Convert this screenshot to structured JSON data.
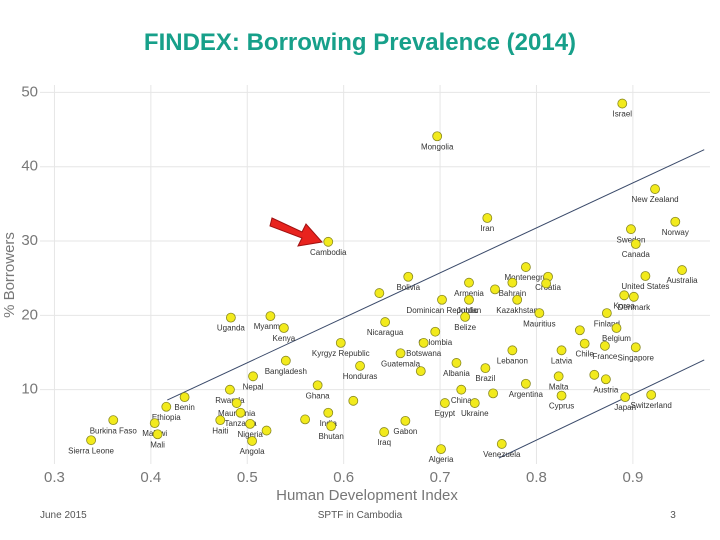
{
  "chart_data": {
    "type": "scatter",
    "title": "FINDEX: Borrowing Prevalence (2014)",
    "x_label": "Human Development Index",
    "y_label": "% Borrowers",
    "xlim": [
      0.285,
      0.98
    ],
    "ylim": [
      0,
      51
    ],
    "xticks": [
      0.3,
      0.4,
      0.5,
      0.6,
      0.7,
      0.8,
      0.9
    ],
    "yticks": [
      10,
      20,
      30,
      40,
      50
    ],
    "grid": true,
    "color": "#f2ea1c",
    "labels": [
      "Israel",
      "Mongolia",
      "New Zealand",
      "Iran",
      "Norway",
      "Sweden",
      "Cambodia",
      "Canada",
      "Montenegro",
      "Australia",
      "Bolivia",
      "Croatia",
      "United States",
      "Armenia",
      "Bahrain",
      "Korea",
      "Denmark",
      "Myanmar",
      "Uganda",
      "Kenya",
      "Dominican Republic",
      "Jordan",
      "Kazakhstan",
      "Finland",
      "Nicaragua",
      "Belize",
      "Mauritius",
      "Colombia",
      "Belgium",
      "Kyrgyz Republic",
      "Botswana",
      "Lebanon",
      "Chile",
      "France",
      "Singapore",
      "Latvia",
      "Bangladesh",
      "Guatemala",
      "Nepal",
      "Honduras",
      "Albania",
      "Brazil",
      "Malta",
      "Austria",
      "Rwanda",
      "Benin",
      "China",
      "Ghana",
      "Argentina",
      "Mauritania",
      "Ethiopia",
      "Egypt",
      "Ukraine",
      "Cyprus",
      "Switzerland",
      "Japan",
      "Tanzania",
      "India",
      "Burkina Faso",
      "Haiti",
      "Malawi",
      "Nigeria",
      "Sierra Leone",
      "Mali",
      "Bhutan",
      "Gabon",
      "Angola",
      "Iraq",
      "Algeria",
      "Venezuela",
      null,
      null,
      null,
      null,
      null,
      null,
      null,
      null,
      null,
      null
    ],
    "x": [
      0.889,
      0.697,
      0.923,
      0.749,
      0.944,
      0.898,
      0.584,
      0.903,
      0.789,
      0.951,
      0.667,
      0.812,
      0.913,
      0.73,
      0.775,
      0.891,
      0.901,
      0.524,
      0.483,
      0.538,
      0.702,
      0.73,
      0.78,
      0.873,
      0.643,
      0.726,
      0.803,
      0.695,
      0.883,
      0.597,
      0.683,
      0.775,
      0.85,
      0.871,
      0.903,
      0.826,
      0.54,
      0.659,
      0.506,
      0.617,
      0.717,
      0.747,
      0.823,
      0.872,
      0.482,
      0.435,
      0.722,
      0.573,
      0.789,
      0.489,
      0.416,
      0.705,
      0.736,
      0.826,
      0.919,
      0.892,
      0.493,
      0.584,
      0.361,
      0.472,
      0.404,
      0.503,
      0.338,
      0.407,
      0.587,
      0.664,
      0.505,
      0.642,
      0.701,
      0.764,
      0.637,
      0.757,
      0.81,
      0.845,
      0.86,
      0.52,
      0.56,
      0.61,
      0.68,
      0.755
    ],
    "y": [
      48.5,
      44.1,
      37.0,
      33.1,
      32.6,
      31.6,
      29.9,
      29.6,
      26.5,
      26.1,
      25.2,
      25.2,
      25.3,
      24.4,
      24.4,
      22.7,
      22.5,
      19.9,
      19.7,
      18.3,
      22.1,
      22.1,
      22.1,
      20.3,
      19.1,
      19.8,
      20.3,
      17.8,
      18.3,
      16.3,
      16.3,
      15.3,
      16.2,
      15.9,
      15.7,
      15.3,
      13.9,
      14.9,
      11.8,
      13.2,
      13.6,
      12.9,
      11.8,
      11.4,
      10.0,
      9.0,
      10.0,
      10.6,
      10.8,
      8.2,
      7.7,
      8.2,
      8.2,
      9.2,
      9.3,
      9.0,
      6.9,
      6.9,
      5.9,
      5.9,
      5.5,
      5.4,
      3.2,
      4.0,
      5.1,
      5.8,
      3.1,
      4.3,
      2.0,
      2.7,
      23.0,
      23.5,
      24.3,
      18.0,
      12.0,
      4.5,
      6.0,
      8.5,
      12.5,
      9.5
    ],
    "trend_lines": [
      {
        "x": [
          0.417,
          0.974
        ],
        "y": [
          8.6,
          42.3
        ]
      },
      {
        "x": [
          0.761,
          0.974
        ],
        "y": [
          0.8,
          14.0
        ]
      }
    ]
  },
  "footer": {
    "date": "June 2015",
    "source": "SPTF in Cambodia",
    "page": "3"
  }
}
